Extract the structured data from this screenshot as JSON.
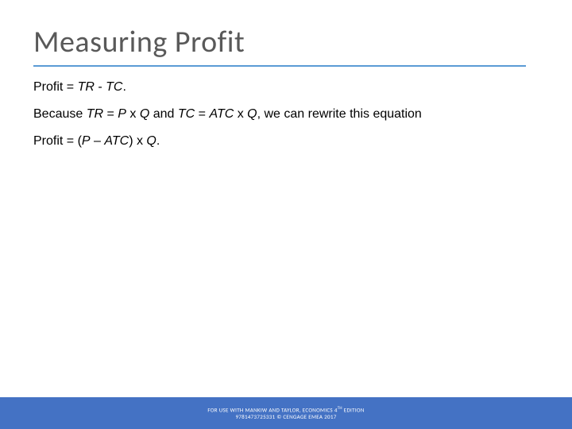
{
  "slide": {
    "title": "Measuring Profit",
    "title_color": "#595959",
    "title_fontsize": 38,
    "underline_color": "#5b9bd5",
    "background_color": "#ffffff",
    "paragraphs": {
      "p1_a": "Profit = ",
      "p1_b": "TR",
      "p1_c": " - ",
      "p1_d": "TC",
      "p1_e": ".",
      "p2_a": "Because ",
      "p2_b": "TR",
      "p2_c": " = ",
      "p2_d": "P",
      "p2_e": " x ",
      "p2_f": "Q",
      "p2_g": " and ",
      "p2_h": "TC",
      "p2_i": " = ",
      "p2_j": "ATC",
      "p2_k": " x ",
      "p2_l": "Q",
      "p2_m": ", we can rewrite this equation",
      "p3_a": "Profit = (",
      "p3_b": "P",
      "p3_c": " – ",
      "p3_d": "ATC",
      "p3_e": ") x ",
      "p3_f": "Q",
      "p3_g": "."
    },
    "footer": {
      "line1_a": "FOR USE WITH MANKIW AND TAYLOR, ECONOMICS 4",
      "line1_sup": "TH",
      "line1_b": " EDITION",
      "line2": "9781473725331 © CENGAGE EMEA 2017",
      "bar_color": "#4472c4",
      "text_color": "#ffffff"
    }
  }
}
